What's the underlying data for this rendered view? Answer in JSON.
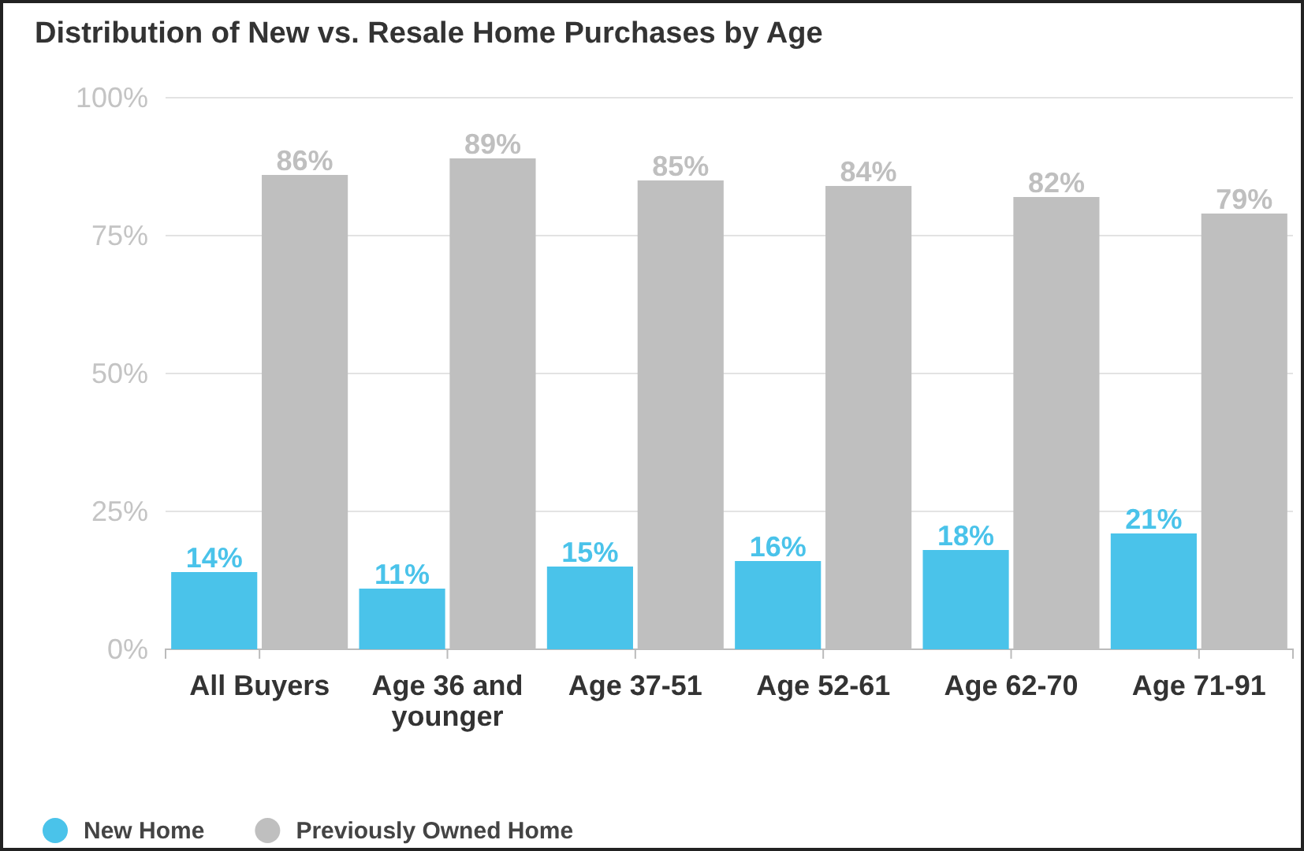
{
  "chart_data": {
    "type": "bar",
    "title": "Distribution of New vs. Resale Home Purchases by Age",
    "categories": [
      "All Buyers",
      "Age 36 and younger",
      "Age 37-51",
      "Age 52-61",
      "Age 62-70",
      "Age 71-91"
    ],
    "series": [
      {
        "name": "New Home",
        "color": "#4ac3ea",
        "values": [
          14,
          11,
          15,
          16,
          18,
          21
        ],
        "value_labels": [
          "14%",
          "11%",
          "15%",
          "16%",
          "18%",
          "21%"
        ]
      },
      {
        "name": "Previously Owned Home",
        "color": "#bfbfbf",
        "values": [
          86,
          89,
          85,
          84,
          82,
          79
        ],
        "value_labels": [
          "86%",
          "89%",
          "85%",
          "84%",
          "82%",
          "79%"
        ]
      }
    ],
    "ylim": [
      0,
      100
    ],
    "yticks": [
      {
        "value": 0,
        "label": "0%"
      },
      {
        "value": 25,
        "label": "25%"
      },
      {
        "value": 50,
        "label": "50%"
      },
      {
        "value": 75,
        "label": "75%"
      },
      {
        "value": 100,
        "label": "100%"
      }
    ],
    "grid": "y",
    "legend": "bottom left"
  }
}
